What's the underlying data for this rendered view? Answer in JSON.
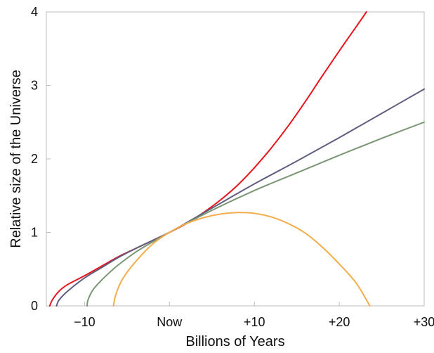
{
  "chart_data": {
    "type": "line",
    "title": "",
    "xlabel": "Billions of Years",
    "ylabel": "Relative size of the Universe",
    "xlim": [
      -14.5,
      30
    ],
    "ylim": [
      0,
      4
    ],
    "grid": false,
    "x_ticks": [
      {
        "value": -10,
        "label": "−10"
      },
      {
        "value": 0,
        "label": "Now"
      },
      {
        "value": 10,
        "label": "+10"
      },
      {
        "value": 20,
        "label": "+20"
      },
      {
        "value": 30,
        "label": "+30"
      }
    ],
    "y_ticks": [
      {
        "value": 0,
        "label": "0"
      },
      {
        "value": 1,
        "label": "1"
      },
      {
        "value": 2,
        "label": "2"
      },
      {
        "value": 3,
        "label": "3"
      },
      {
        "value": 4,
        "label": "4"
      }
    ],
    "series": [
      {
        "color": "#e8141c",
        "points": [
          [
            -14.1,
            0
          ],
          [
            -13.8,
            0.08
          ],
          [
            -13,
            0.2
          ],
          [
            -12,
            0.29
          ],
          [
            -10,
            0.41
          ],
          [
            -8,
            0.54
          ],
          [
            -6,
            0.67
          ],
          [
            -4,
            0.78
          ],
          [
            -2,
            0.89
          ],
          [
            0,
            1.0
          ],
          [
            2,
            1.12
          ],
          [
            4,
            1.27
          ],
          [
            6,
            1.44
          ],
          [
            8,
            1.64
          ],
          [
            10,
            1.88
          ],
          [
            12,
            2.15
          ],
          [
            14,
            2.45
          ],
          [
            16,
            2.78
          ],
          [
            18,
            3.13
          ],
          [
            20,
            3.47
          ],
          [
            22,
            3.8
          ],
          [
            23.2,
            4.0
          ]
        ]
      },
      {
        "color": "#5f5e80",
        "points": [
          [
            -13.3,
            0
          ],
          [
            -13,
            0.08
          ],
          [
            -12,
            0.2
          ],
          [
            -10,
            0.38
          ],
          [
            -8,
            0.52
          ],
          [
            -6,
            0.66
          ],
          [
            -4,
            0.78
          ],
          [
            -2,
            0.89
          ],
          [
            0,
            1.0
          ],
          [
            5,
            1.33
          ],
          [
            10,
            1.66
          ],
          [
            15,
            1.97
          ],
          [
            20,
            2.29
          ],
          [
            25,
            2.62
          ],
          [
            30,
            2.95
          ]
        ]
      },
      {
        "color": "#7a9674",
        "points": [
          [
            -9.7,
            0
          ],
          [
            -9.6,
            0.08
          ],
          [
            -9,
            0.22
          ],
          [
            -8,
            0.35
          ],
          [
            -7,
            0.46
          ],
          [
            -6,
            0.56
          ],
          [
            -4,
            0.73
          ],
          [
            -2,
            0.87
          ],
          [
            0,
            1.0
          ],
          [
            5,
            1.3
          ],
          [
            10,
            1.57
          ],
          [
            15,
            1.81
          ],
          [
            20,
            2.05
          ],
          [
            25,
            2.28
          ],
          [
            30,
            2.5
          ]
        ]
      },
      {
        "color": "#f2ae4c",
        "points": [
          [
            -6.6,
            0
          ],
          [
            -6.3,
            0.16
          ],
          [
            -5.5,
            0.37
          ],
          [
            -4,
            0.6
          ],
          [
            -2,
            0.84
          ],
          [
            0,
            1.0
          ],
          [
            2,
            1.12
          ],
          [
            4,
            1.2
          ],
          [
            6,
            1.25
          ],
          [
            8,
            1.27
          ],
          [
            10,
            1.26
          ],
          [
            12,
            1.21
          ],
          [
            14,
            1.12
          ],
          [
            16,
            0.99
          ],
          [
            18,
            0.8
          ],
          [
            20,
            0.57
          ],
          [
            22,
            0.31
          ],
          [
            23.6,
            0
          ]
        ]
      }
    ]
  }
}
